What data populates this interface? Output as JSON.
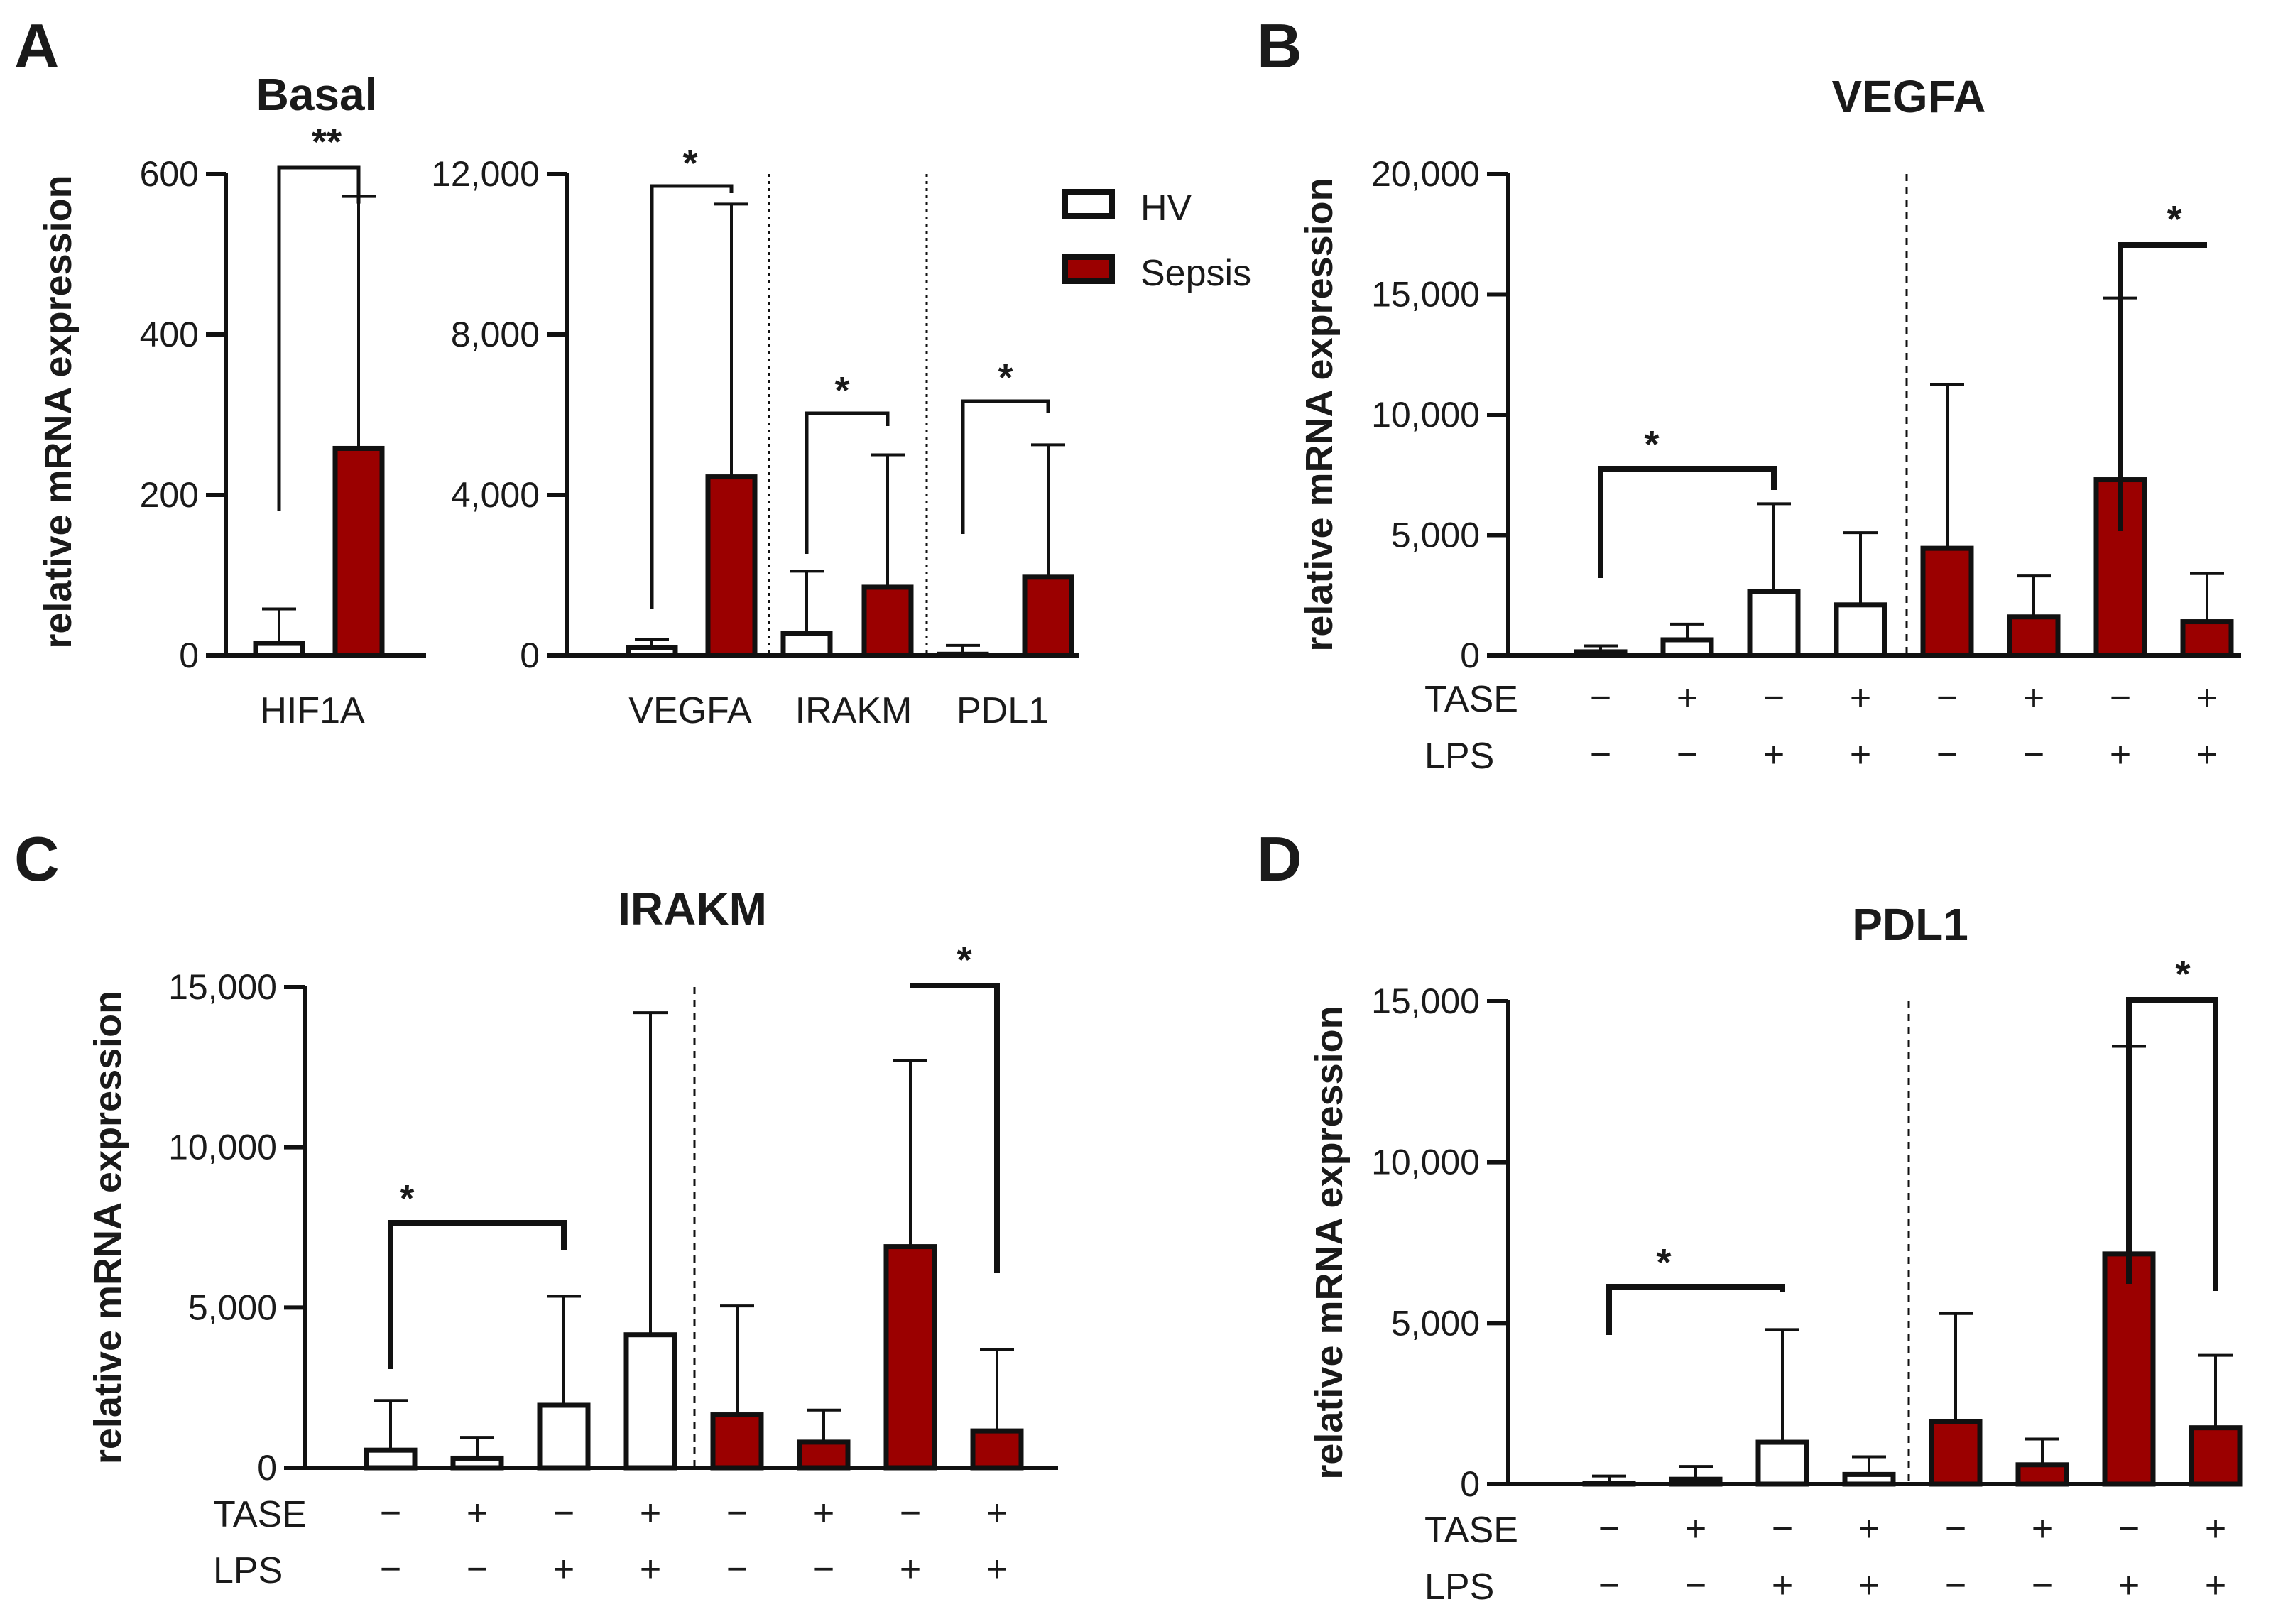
{
  "figure": {
    "ylabel": "relative mRNA expression",
    "legend": [
      {
        "label": "HV",
        "fill": "#ffffff"
      },
      {
        "label": "Sepsis",
        "fill": "#9b0000"
      }
    ],
    "colors": {
      "hv": "#ffffff",
      "sepsis": "#9b0000",
      "stroke": "#111111"
    }
  },
  "chart_data": [
    {
      "panel": "A",
      "type": "bar",
      "title": "Basal",
      "ylim": [
        0,
        600
      ],
      "yticks": [
        "0",
        "200",
        "400",
        "600"
      ],
      "categories": [
        "HIF1A"
      ],
      "series": [
        {
          "name": "HV",
          "values": [
            15
          ],
          "error": [
            58
          ]
        },
        {
          "name": "Sepsis",
          "values": [
            258
          ],
          "error": [
            572
          ]
        }
      ],
      "significance": [
        {
          "label": "**",
          "between": [
            "HV",
            "Sepsis"
          ],
          "category": "HIF1A"
        }
      ]
    },
    {
      "panel": "A",
      "type": "bar",
      "ylim": [
        0,
        12000
      ],
      "yticks": [
        "0",
        "4,000",
        "8,000",
        "12,000"
      ],
      "categories": [
        "VEGFA",
        "IRAKM",
        "PDL1"
      ],
      "series": [
        {
          "name": "HV",
          "values": [
            200,
            550,
            30
          ],
          "error": [
            400,
            2100,
            250
          ]
        },
        {
          "name": "Sepsis",
          "values": [
            4450,
            1700,
            1950
          ],
          "error": [
            11250,
            5000,
            5250
          ]
        }
      ],
      "significance": [
        {
          "label": "*",
          "category": "VEGFA"
        },
        {
          "label": "*",
          "category": "IRAKM"
        },
        {
          "label": "*",
          "category": "PDL1"
        }
      ]
    },
    {
      "panel": "B",
      "type": "bar",
      "title": "VEGFA",
      "ylim": [
        0,
        20000
      ],
      "yticks": [
        "0",
        "5,000",
        "10,000",
        "15,000",
        "20,000"
      ],
      "conditions": {
        "TASE": [
          "−",
          "+",
          "−",
          "+",
          "−",
          "+",
          "−",
          "+"
        ],
        "LPS": [
          "−",
          "−",
          "+",
          "+",
          "−",
          "−",
          "+",
          "+"
        ]
      },
      "groups": [
        "HV",
        "HV",
        "HV",
        "HV",
        "Sepsis",
        "Sepsis",
        "Sepsis",
        "Sepsis"
      ],
      "values": [
        150,
        650,
        2650,
        2100,
        4450,
        1600,
        7300,
        1400
      ],
      "error": [
        400,
        1300,
        6300,
        5100,
        11250,
        3300,
        14850,
        3400
      ],
      "significance": [
        {
          "label": "*",
          "bars": [
            1,
            3
          ]
        },
        {
          "label": "*",
          "bars": [
            7,
            8
          ]
        }
      ]
    },
    {
      "panel": "C",
      "type": "bar",
      "title": "IRAKM",
      "ylim": [
        0,
        15000
      ],
      "yticks": [
        "0",
        "5,000",
        "10,000",
        "15,000"
      ],
      "conditions": {
        "TASE": [
          "−",
          "+",
          "−",
          "+",
          "−",
          "+",
          "−",
          "+"
        ],
        "LPS": [
          "−",
          "−",
          "+",
          "+",
          "−",
          "−",
          "+",
          "+"
        ]
      },
      "groups": [
        "HV",
        "HV",
        "HV",
        "HV",
        "Sepsis",
        "Sepsis",
        "Sepsis",
        "Sepsis"
      ],
      "values": [
        550,
        300,
        1950,
        4150,
        1650,
        800,
        6900,
        1150
      ],
      "error": [
        2100,
        950,
        5350,
        14200,
        5050,
        1800,
        12700,
        3700
      ],
      "significance": [
        {
          "label": "*",
          "bars": [
            1,
            3
          ]
        },
        {
          "label": "*",
          "bars": [
            7,
            8
          ]
        }
      ]
    },
    {
      "panel": "D",
      "type": "bar",
      "title": "PDL1",
      "ylim": [
        0,
        15000
      ],
      "yticks": [
        "0",
        "5,000",
        "10,000",
        "15,000"
      ],
      "conditions": {
        "TASE": [
          "−",
          "+",
          "−",
          "+",
          "−",
          "+",
          "−",
          "+"
        ],
        "LPS": [
          "−",
          "−",
          "+",
          "+",
          "−",
          "−",
          "+",
          "+"
        ]
      },
      "groups": [
        "HV",
        "HV",
        "HV",
        "HV",
        "Sepsis",
        "Sepsis",
        "Sepsis",
        "Sepsis"
      ],
      "values": [
        30,
        150,
        1300,
        300,
        1950,
        600,
        7150,
        1750
      ],
      "error": [
        250,
        550,
        4800,
        850,
        5300,
        1400,
        13600,
        4000
      ],
      "significance": [
        {
          "label": "*",
          "bars": [
            1,
            3
          ]
        },
        {
          "label": "*",
          "bars": [
            7,
            8
          ]
        }
      ]
    }
  ]
}
